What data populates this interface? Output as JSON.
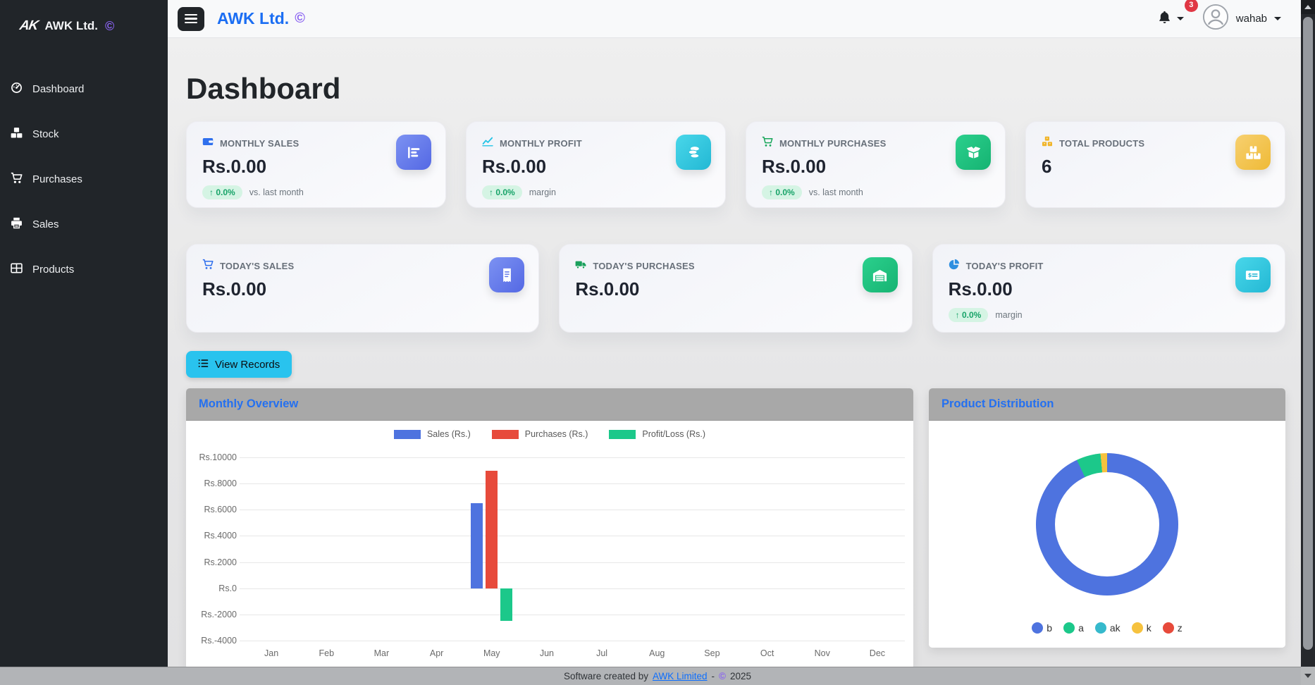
{
  "brand": {
    "logo": "AK",
    "name": "AWK Ltd.",
    "copyright": "©"
  },
  "header": {
    "notification_count": "3",
    "username": "wahab"
  },
  "sidebar": {
    "items": [
      {
        "label": "Dashboard"
      },
      {
        "label": "Stock"
      },
      {
        "label": "Purchases"
      },
      {
        "label": "Sales"
      },
      {
        "label": "Products"
      }
    ]
  },
  "main": {
    "title": "Dashboard",
    "delta_arrow": "↑",
    "view_records": "View Records",
    "cards_row1": [
      {
        "label": "MONTHLY SALES",
        "value": "Rs.0.00",
        "delta": "0.0%",
        "delta_suffix": "vs. last month"
      },
      {
        "label": "MONTHLY PROFIT",
        "value": "Rs.0.00",
        "delta": "0.0%",
        "delta_suffix": "margin"
      },
      {
        "label": "MONTHLY PURCHASES",
        "value": "Rs.0.00",
        "delta": "0.0%",
        "delta_suffix": "vs. last month"
      },
      {
        "label": "TOTAL PRODUCTS",
        "value": "6"
      }
    ],
    "cards_row2": [
      {
        "label": "TODAY'S SALES",
        "value": "Rs.0.00"
      },
      {
        "label": "TODAY'S PURCHASES",
        "value": "Rs.0.00"
      },
      {
        "label": "TODAY'S PROFIT",
        "value": "Rs.0.00",
        "delta": "0.0%",
        "delta_suffix": "margin"
      }
    ],
    "panels": {
      "left_title": "Monthly Overview",
      "right_title": "Product Distribution"
    }
  },
  "chart_data": [
    {
      "type": "bar",
      "title": "Monthly Overview",
      "categories": [
        "Jan",
        "Feb",
        "Mar",
        "Apr",
        "May",
        "Jun",
        "Jul",
        "Aug",
        "Sep",
        "Oct",
        "Nov",
        "Dec"
      ],
      "series": [
        {
          "name": "Sales (Rs.)",
          "color": "#4e73df",
          "values": [
            0,
            0,
            0,
            0,
            6500,
            0,
            0,
            0,
            0,
            0,
            0,
            0
          ]
        },
        {
          "name": "Purchases (Rs.)",
          "color": "#e74a3b",
          "values": [
            0,
            0,
            0,
            0,
            9000,
            0,
            0,
            0,
            0,
            0,
            0,
            0
          ]
        },
        {
          "name": "Profit/Loss (Rs.)",
          "color": "#1cc88a",
          "values": [
            0,
            0,
            0,
            0,
            -2500,
            0,
            0,
            0,
            0,
            0,
            0,
            0
          ]
        }
      ],
      "ylim": [
        -4000,
        10000
      ],
      "ytick_step": 2000,
      "ytick_prefix": "Rs.",
      "grid": true,
      "legend_position": "top"
    },
    {
      "type": "pie",
      "title": "Product Distribution",
      "labels": [
        "b",
        "a",
        "ak",
        "k",
        "z"
      ],
      "values": [
        93,
        5.5,
        0,
        1.5,
        0
      ],
      "colors": [
        "#4e73df",
        "#1cc88a",
        "#36b9cc",
        "#f6c23e",
        "#e74a3b"
      ],
      "legend_position": "bottom"
    }
  ],
  "footer": {
    "prefix": "Software created by",
    "link": "AWK Limited",
    "dash": "-",
    "copyright": "©",
    "year": "2025"
  },
  "colors": {
    "primary": "#4e73df",
    "success": "#1cc88a",
    "info": "#36b9cc",
    "warning": "#f6c23e",
    "danger": "#e74a3b"
  }
}
